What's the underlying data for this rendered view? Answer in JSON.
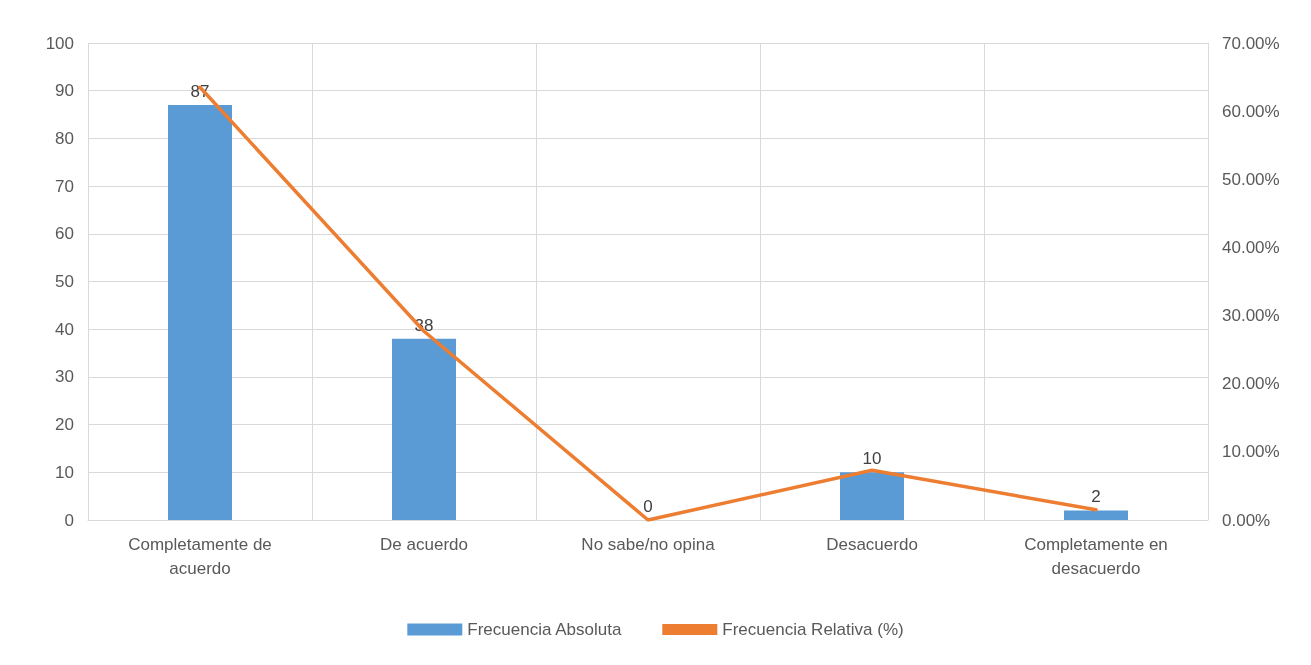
{
  "chart_data": {
    "type": "bar",
    "categories": [
      "Completamente de\nacuerdo",
      "De acuerdo",
      "No sabe/no opina",
      "Desacuerdo",
      "Completamente en\ndesacuerdo"
    ],
    "series": [
      {
        "name": "Frecuencia Absoluta",
        "color": "#5b9bd5",
        "values": [
          87,
          38,
          0,
          10,
          2
        ],
        "value_labels": [
          "87",
          "38",
          "0",
          "10",
          "2"
        ]
      },
      {
        "name": "Frecuencia Relativa (%)",
        "type": "line",
        "axis": "y2",
        "color": "#ed7d31",
        "values": [
          63.5,
          27.7,
          0,
          7.3,
          1.5
        ]
      }
    ],
    "ylim": [
      0,
      100
    ],
    "yticks": [
      0,
      10,
      20,
      30,
      40,
      50,
      60,
      70,
      80,
      90,
      100
    ],
    "y2lim": [
      0,
      70
    ],
    "y2ticks": [
      {
        "value": 0,
        "label": "0.00%"
      },
      {
        "value": 10,
        "label": "10.00%"
      },
      {
        "value": 20,
        "label": "20.00%"
      },
      {
        "value": 30,
        "label": "30.00%"
      },
      {
        "value": 40,
        "label": "40.00%"
      },
      {
        "value": 50,
        "label": "50.00%"
      },
      {
        "value": 60,
        "label": "60.00%"
      },
      {
        "value": 70,
        "label": "70.00%"
      }
    ],
    "grid": true,
    "legend": "bottom",
    "marker": "none",
    "line_style": "solid"
  }
}
